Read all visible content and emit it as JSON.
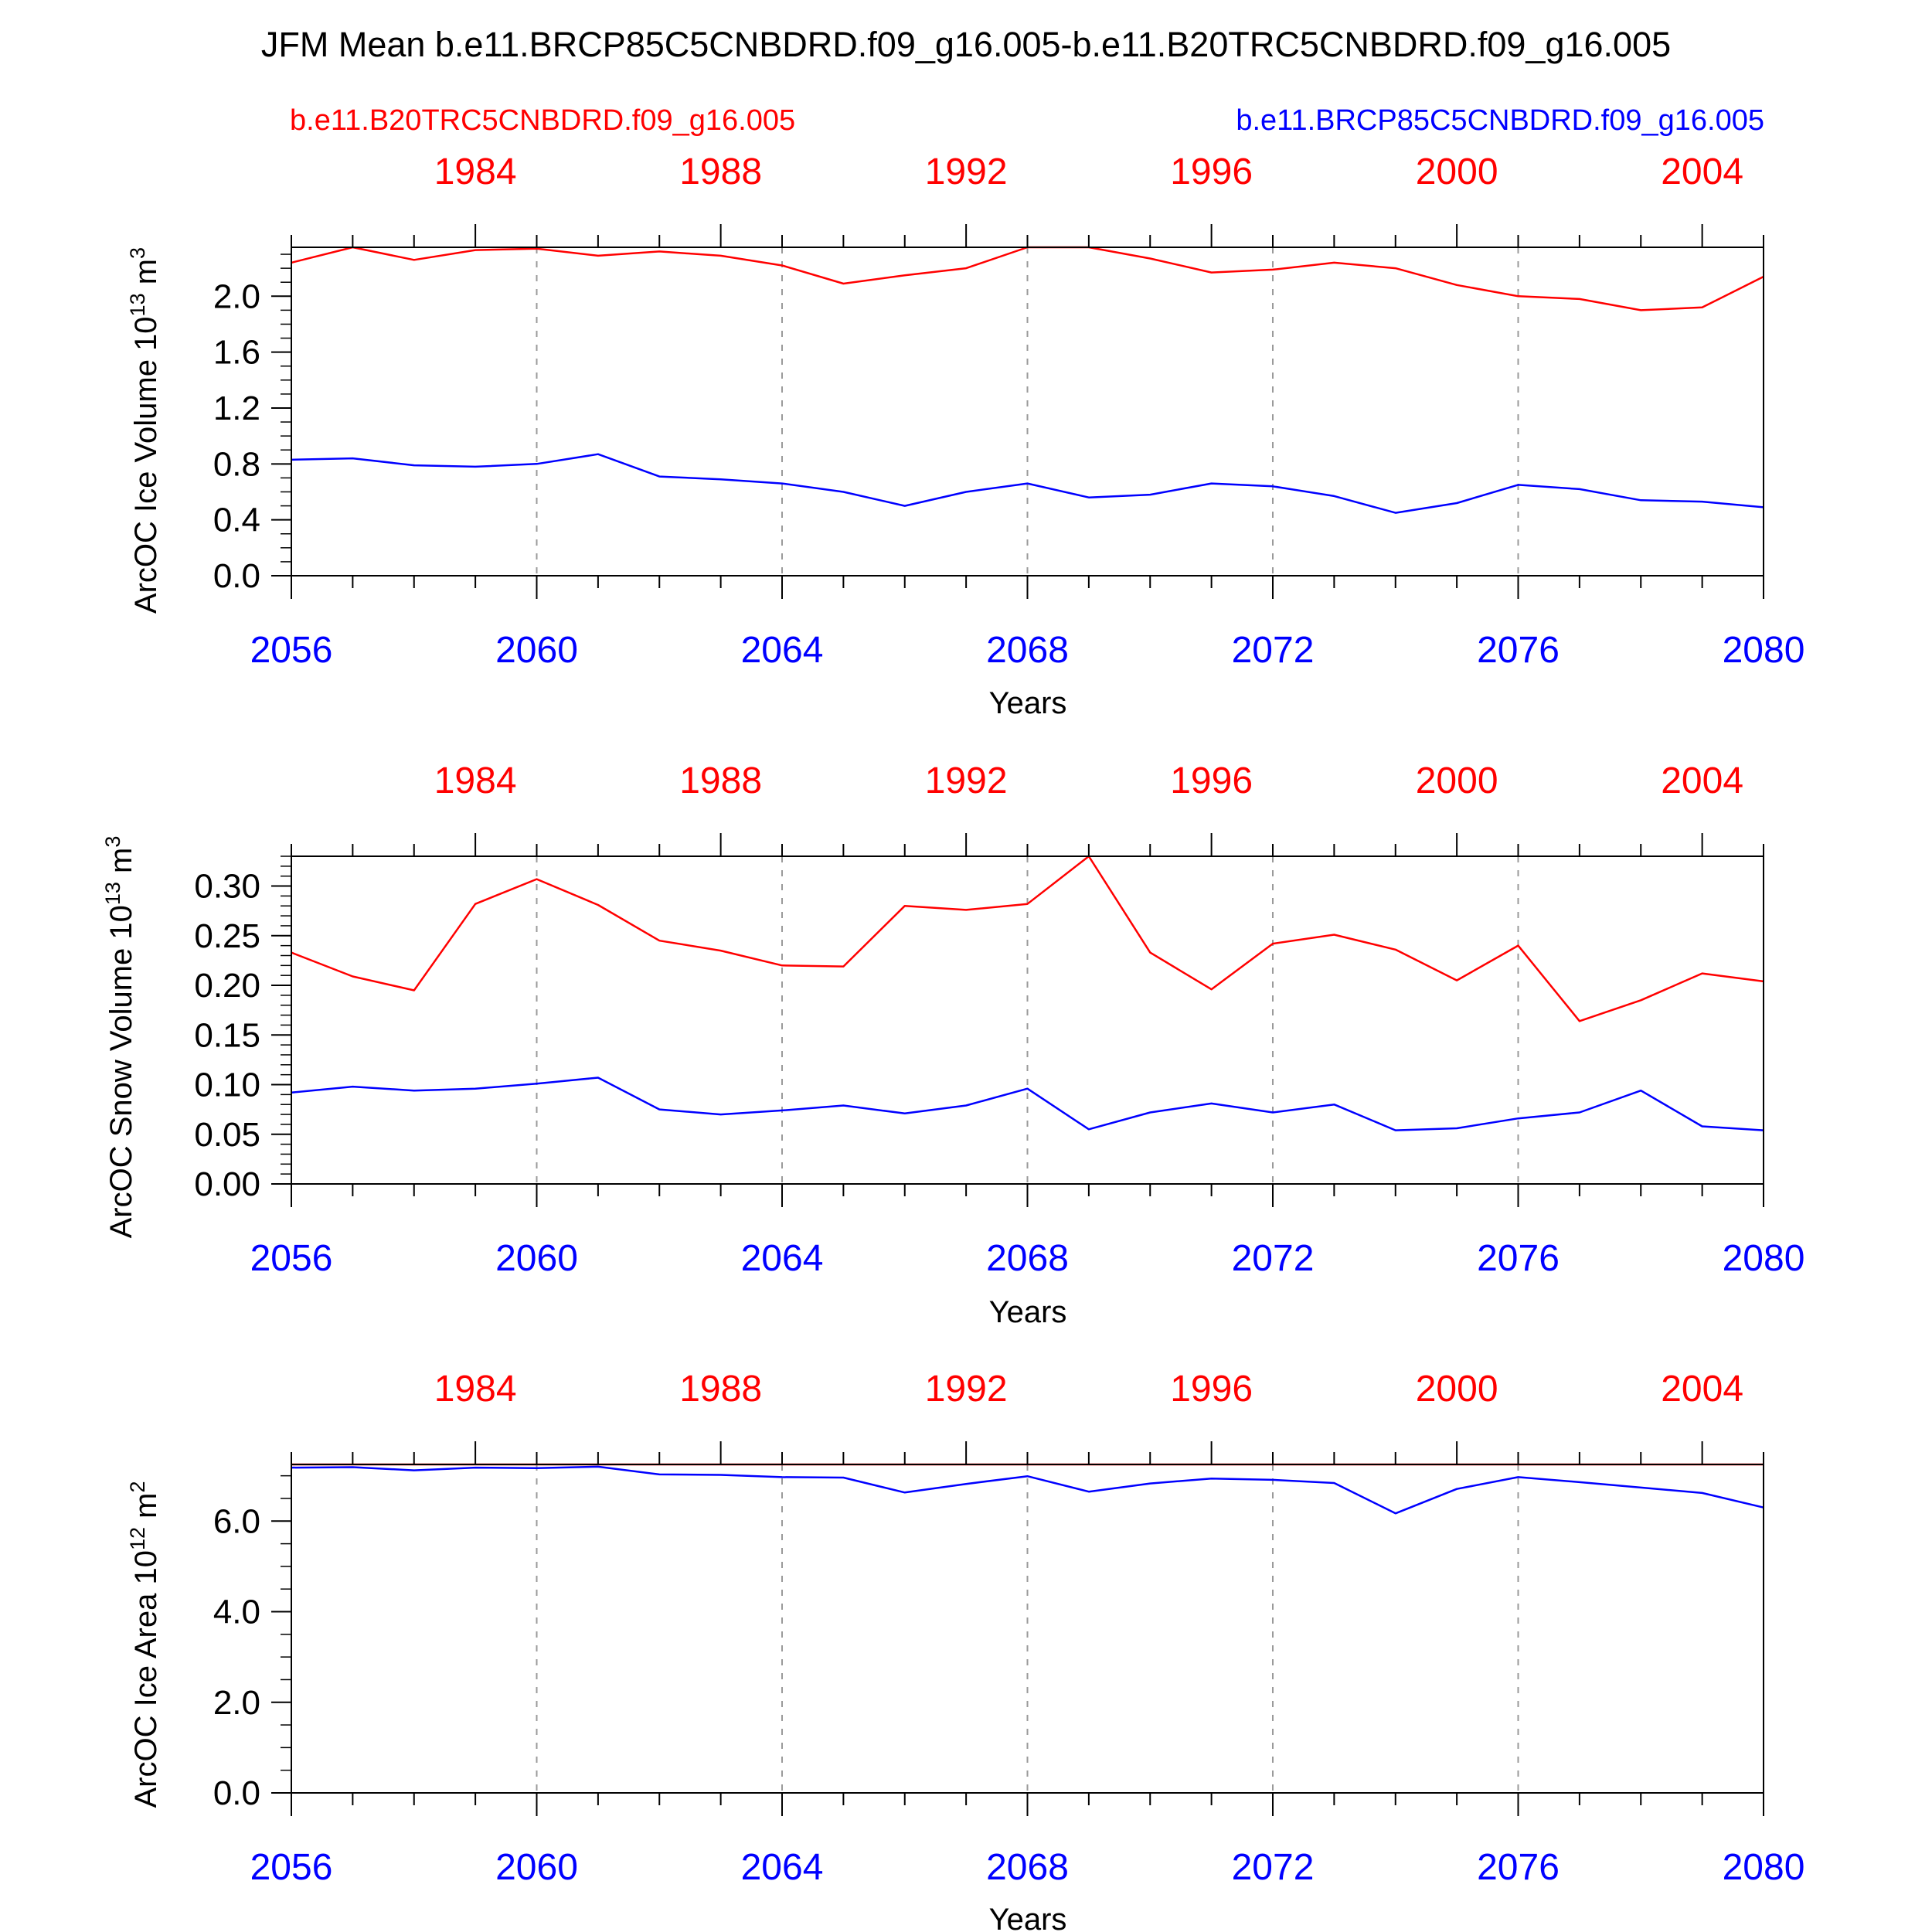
{
  "figure": {
    "title": "JFM Mean b.e11.BRCP85C5CNBDRD.f09_g16.005-b.e11.B20TRC5CNBDRD.f09_g16.005",
    "legend_left": "b.e11.B20TRC5CNBDRD.f09_g16.005",
    "legend_right": "b.e11.BRCP85C5CNBDRD.f09_g16.005",
    "colors": {
      "red": "#ff0000",
      "blue": "#0000ff",
      "axis": "#000000",
      "grid": "#9a9a9a"
    }
  },
  "chart_data": [
    {
      "type": "line",
      "ylabel_main": "ArcOC Ice Volume 10",
      "ylabel_exp": "13",
      "ylabel_unit": " m",
      "ylabel_unit_exp": "3",
      "xlabel": "Years",
      "xlim": [
        2056,
        2080
      ],
      "ylim": [
        0.0,
        2.35
      ],
      "y_ticks": [
        "0.0",
        "0.4",
        "0.8",
        "1.2",
        "1.6",
        "2.0"
      ],
      "y_tick_values": [
        0.0,
        0.4,
        0.8,
        1.2,
        1.6,
        2.0
      ],
      "y_minor_step": 0.1,
      "x_ticks_bottom": [
        "2056",
        "2060",
        "2064",
        "2068",
        "2072",
        "2076",
        "2080"
      ],
      "x_tick_values_bottom": [
        2056,
        2060,
        2064,
        2068,
        2072,
        2076,
        2080
      ],
      "x_ticks_top": [
        "1984",
        "1988",
        "1992",
        "1996",
        "2000",
        "2004"
      ],
      "x_tick_values_top": [
        1984,
        1988,
        1992,
        1996,
        2000,
        2004
      ],
      "top_offset": 75,
      "gridlines_x": [
        2060,
        2064,
        2068,
        2072,
        2076
      ],
      "grid": "dashed-vertical",
      "x": [
        2056,
        2057,
        2058,
        2059,
        2060,
        2061,
        2062,
        2063,
        2064,
        2065,
        2066,
        2067,
        2068,
        2069,
        2070,
        2071,
        2072,
        2073,
        2074,
        2075,
        2076,
        2077,
        2078,
        2079,
        2080
      ],
      "series": [
        {
          "color": "#ff0000",
          "values": [
            2.24,
            2.35,
            2.26,
            2.33,
            2.34,
            2.29,
            2.32,
            2.29,
            2.22,
            2.09,
            2.15,
            2.2,
            2.35,
            2.35,
            2.27,
            2.17,
            2.19,
            2.24,
            2.2,
            2.08,
            2.0,
            1.98,
            1.9,
            1.92,
            2.14
          ]
        },
        {
          "color": "#0000ff",
          "values": [
            0.83,
            0.84,
            0.79,
            0.78,
            0.8,
            0.87,
            0.71,
            0.69,
            0.66,
            0.6,
            0.5,
            0.6,
            0.66,
            0.56,
            0.58,
            0.66,
            0.64,
            0.57,
            0.45,
            0.52,
            0.65,
            0.62,
            0.54,
            0.53,
            0.49
          ]
        }
      ]
    },
    {
      "type": "line",
      "ylabel_main": "ArcOC Snow Volume 10",
      "ylabel_exp": "13",
      "ylabel_unit": " m",
      "ylabel_unit_exp": "3",
      "xlabel": "Years",
      "xlim": [
        2056,
        2080
      ],
      "ylim": [
        0.0,
        0.33
      ],
      "y_ticks": [
        "0.00",
        "0.05",
        "0.10",
        "0.15",
        "0.20",
        "0.25",
        "0.30"
      ],
      "y_tick_values": [
        0.0,
        0.05,
        0.1,
        0.15,
        0.2,
        0.25,
        0.3
      ],
      "y_minor_step": 0.01,
      "x_ticks_bottom": [
        "2056",
        "2060",
        "2064",
        "2068",
        "2072",
        "2076",
        "2080"
      ],
      "x_tick_values_bottom": [
        2056,
        2060,
        2064,
        2068,
        2072,
        2076,
        2080
      ],
      "x_ticks_top": [
        "1984",
        "1988",
        "1992",
        "1996",
        "2000",
        "2004"
      ],
      "x_tick_values_top": [
        1984,
        1988,
        1992,
        1996,
        2000,
        2004
      ],
      "top_offset": 75,
      "gridlines_x": [
        2060,
        2064,
        2068,
        2072,
        2076
      ],
      "grid": "dashed-vertical",
      "x": [
        2056,
        2057,
        2058,
        2059,
        2060,
        2061,
        2062,
        2063,
        2064,
        2065,
        2066,
        2067,
        2068,
        2069,
        2070,
        2071,
        2072,
        2073,
        2074,
        2075,
        2076,
        2077,
        2078,
        2079,
        2080
      ],
      "series": [
        {
          "color": "#ff0000",
          "values": [
            0.233,
            0.209,
            0.195,
            0.282,
            0.307,
            0.281,
            0.245,
            0.235,
            0.22,
            0.219,
            0.28,
            0.276,
            0.282,
            0.33,
            0.233,
            0.196,
            0.242,
            0.251,
            0.236,
            0.205,
            0.24,
            0.164,
            0.185,
            0.212,
            0.204
          ]
        },
        {
          "color": "#0000ff",
          "values": [
            0.092,
            0.098,
            0.094,
            0.096,
            0.101,
            0.107,
            0.075,
            0.07,
            0.074,
            0.079,
            0.071,
            0.079,
            0.096,
            0.055,
            0.072,
            0.081,
            0.072,
            0.08,
            0.054,
            0.056,
            0.066,
            0.072,
            0.094,
            0.058,
            0.054
          ]
        }
      ]
    },
    {
      "type": "line",
      "ylabel_main": "ArcOC Ice Area 10",
      "ylabel_exp": "12",
      "ylabel_unit": " m",
      "ylabel_unit_exp": "2",
      "xlabel": "Years",
      "xlim": [
        2056,
        2080
      ],
      "ylim": [
        0.0,
        7.25
      ],
      "y_ticks": [
        "0.0",
        "2.0",
        "4.0",
        "6.0"
      ],
      "y_tick_values": [
        0.0,
        2.0,
        4.0,
        6.0
      ],
      "y_minor_step": 0.5,
      "x_ticks_bottom": [
        "2056",
        "2060",
        "2064",
        "2068",
        "2072",
        "2076",
        "2080"
      ],
      "x_tick_values_bottom": [
        2056,
        2060,
        2064,
        2068,
        2072,
        2076,
        2080
      ],
      "x_ticks_top": [
        "1984",
        "1988",
        "1992",
        "1996",
        "2000",
        "2004"
      ],
      "x_tick_values_top": [
        1984,
        1988,
        1992,
        1996,
        2000,
        2004
      ],
      "top_offset": 75,
      "gridlines_x": [
        2060,
        2064,
        2068,
        2072,
        2076
      ],
      "grid": "dashed-vertical",
      "x": [
        2056,
        2057,
        2058,
        2059,
        2060,
        2061,
        2062,
        2063,
        2064,
        2065,
        2066,
        2067,
        2068,
        2069,
        2070,
        2071,
        2072,
        2073,
        2074,
        2075,
        2076,
        2077,
        2078,
        2079,
        2080
      ],
      "series": [
        {
          "color": "#ff0000",
          "values": [
            7.25,
            7.25,
            7.25,
            7.25,
            7.25,
            7.25,
            7.25,
            7.25,
            7.25,
            7.25,
            7.25,
            7.25,
            7.25,
            7.25,
            7.25,
            7.25,
            7.25,
            7.25,
            7.25,
            7.25,
            7.25,
            7.25,
            7.25,
            7.25,
            7.25
          ]
        },
        {
          "color": "#0000ff",
          "values": [
            7.18,
            7.19,
            7.12,
            7.18,
            7.17,
            7.2,
            7.03,
            7.02,
            6.97,
            6.96,
            6.63,
            6.82,
            6.99,
            6.65,
            6.83,
            6.94,
            6.91,
            6.84,
            6.17,
            6.71,
            6.97,
            6.86,
            6.74,
            6.62,
            6.3
          ]
        }
      ]
    }
  ]
}
